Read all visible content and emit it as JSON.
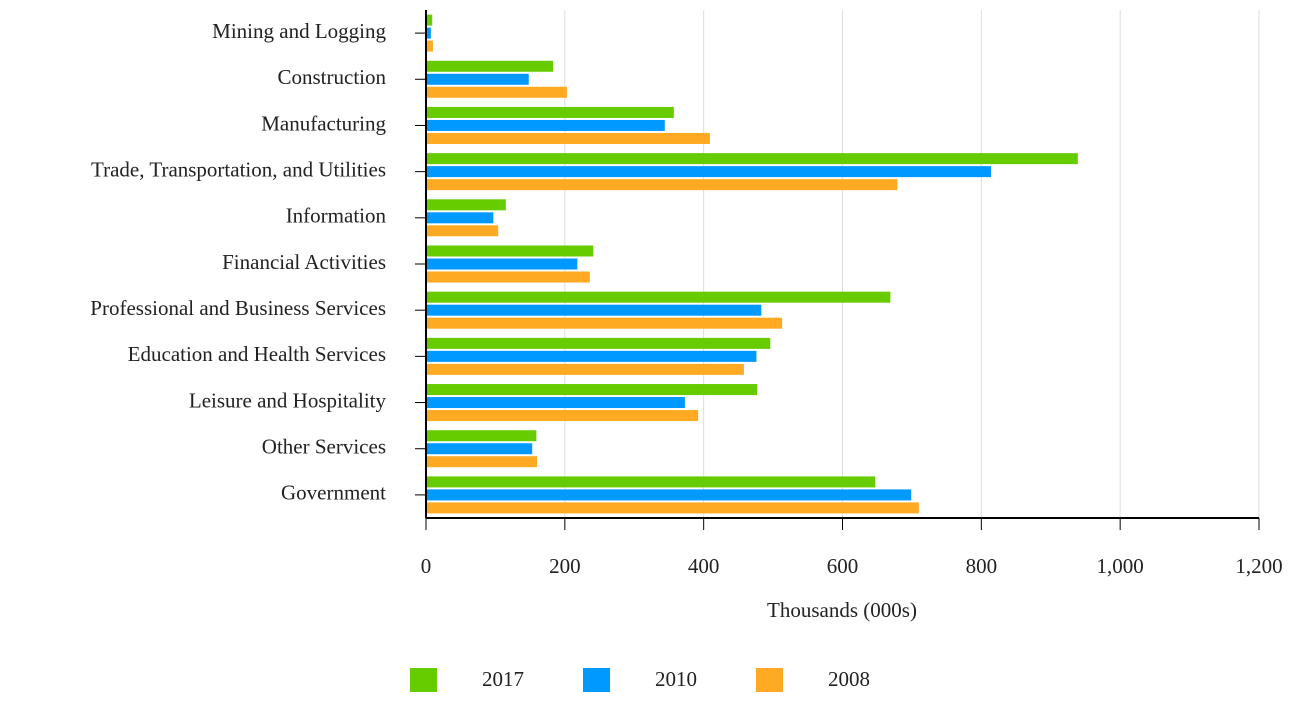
{
  "chart_data": {
    "type": "hbar",
    "x_label": "Thousands (000s)",
    "categories": [
      "Mining and Logging",
      "Construction",
      "Manufacturing",
      "Trade, Transportation, and Utilities",
      "Information",
      "Financial Activities",
      "Professional and Business Services",
      "Education and Health Services",
      "Leisure and Hospitality",
      "Other Services",
      "Government"
    ],
    "series": [
      {
        "name": "2017",
        "color": "#66cc00",
        "values": [
          9,
          183,
          357,
          939,
          115,
          241,
          669,
          496,
          477,
          159,
          647
        ]
      },
      {
        "name": "2010",
        "color": "#0099ff",
        "values": [
          7,
          148,
          344,
          814,
          97,
          218,
          483,
          476,
          373,
          153,
          699
        ]
      },
      {
        "name": "2008",
        "color": "#ffaa22",
        "values": [
          10,
          203,
          409,
          679,
          104,
          236,
          513,
          458,
          392,
          160,
          710
        ]
      }
    ],
    "xlim": [
      0,
      1200
    ],
    "xticks": [
      0,
      200,
      400,
      600,
      800,
      {
        "value": 1000,
        "label": "1,000"
      },
      {
        "value": 1200,
        "label": "1,200"
      }
    ],
    "grid": true,
    "legend": "bottom"
  }
}
